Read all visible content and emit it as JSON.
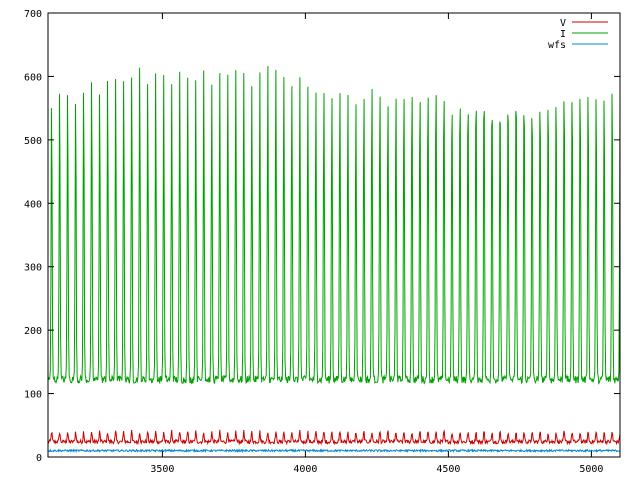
{
  "chart_data": {
    "type": "line",
    "title": "",
    "xlabel": "",
    "ylabel": "",
    "xlim": [
      3100,
      5100
    ],
    "ylim": [
      0,
      700
    ],
    "x_ticks": [
      3500,
      4000,
      4500,
      5000
    ],
    "y_ticks": [
      0,
      100,
      200,
      300,
      400,
      500,
      600,
      700
    ],
    "grid": false,
    "legend_position": "top-right",
    "x_range": [
      3100,
      5100
    ],
    "points_per_series": 1000,
    "series": [
      {
        "name": "V",
        "color": "#cc0000",
        "pattern": "periodic",
        "period": 28,
        "baseline": 24,
        "peak": 40,
        "noise": 3
      },
      {
        "name": "I",
        "color": "#00a000",
        "pattern": "periodic",
        "period": 28,
        "baseline": 122,
        "peaks": [
          570,
          590,
          595,
          575,
          590,
          600,
          585,
          605,
          610,
          595,
          600,
          615,
          595,
          605,
          600,
          590,
          605,
          595,
          600,
          610,
          590,
          600,
          605,
          615,
          600,
          590,
          605,
          620,
          610,
          600,
          595,
          605,
          590,
          580,
          585,
          575,
          590,
          580,
          575,
          585,
          600,
          595,
          580,
          590,
          600,
          605,
          595,
          600,
          610,
          600,
          590,
          605,
          595,
          600,
          610,
          600,
          595,
          605,
          610,
          600,
          590,
          595,
          605,
          600,
          610,
          600,
          605,
          600,
          595,
          590,
          600,
          595
        ],
        "noise": 6
      },
      {
        "name": "wfs",
        "color": "#0088cc",
        "pattern": "noisy",
        "baseline": 10,
        "noise": 1.5
      }
    ]
  }
}
